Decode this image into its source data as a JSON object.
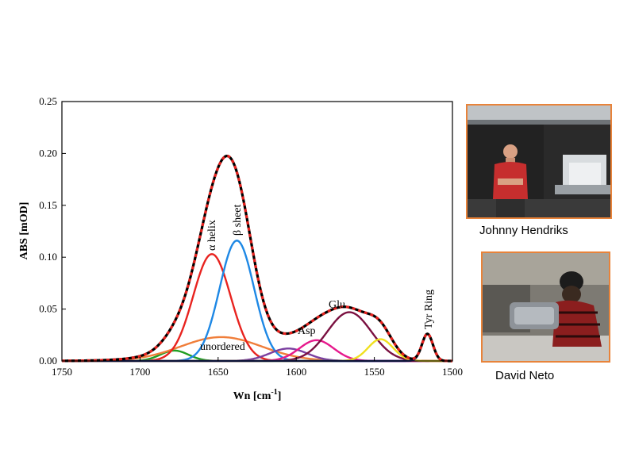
{
  "chart_data": {
    "type": "line",
    "xlabel": "Wn [cm",
    "xlabel_sup": "-1",
    "xlabel_suffix": "]",
    "ylabel": "ABS [mOD]",
    "xlim": [
      1750,
      1500
    ],
    "ylim": [
      0,
      0.25
    ],
    "x_ticks": [
      1750,
      1700,
      1650,
      1600,
      1550,
      1500
    ],
    "x_tick_labels": [
      "1750",
      "1700",
      "1650",
      "1600",
      "1550",
      "1500"
    ],
    "y_ticks": [
      0,
      0.05,
      0.1,
      0.15,
      0.2,
      0.25
    ],
    "y_tick_labels": [
      "0.00",
      "0.05",
      "0.10",
      "0.15",
      "0.20",
      "0.25"
    ],
    "grid": false,
    "series": [
      {
        "label": "",
        "color": "#1f9e22",
        "center": 1678,
        "amplitude": 0.01,
        "width": 9
      },
      {
        "label": "unordered",
        "color": "#f07e3a",
        "center": 1648,
        "amplitude": 0.023,
        "width": 26
      },
      {
        "label": "α helix",
        "color": "#e8231f",
        "center": 1654,
        "amplitude": 0.103,
        "width": 12
      },
      {
        "label": "β sheet",
        "color": "#1e88e5",
        "center": 1638,
        "amplitude": 0.116,
        "width": 11
      },
      {
        "label": "",
        "color": "#7b3fa0",
        "center": 1605,
        "amplitude": 0.012,
        "width": 12
      },
      {
        "label": "Asp",
        "color": "#e6198c",
        "center": 1587,
        "amplitude": 0.02,
        "width": 11
      },
      {
        "label": "Glu",
        "color": "#7a1040",
        "center": 1566,
        "amplitude": 0.047,
        "width": 14
      },
      {
        "label": "",
        "color": "#f0e020",
        "center": 1546,
        "amplitude": 0.021,
        "width": 8
      },
      {
        "label": "Tyr Ring",
        "color": "#1a2f88",
        "center": 1516,
        "amplitude": 0.026,
        "width": 3.5
      }
    ],
    "sum_curve": {
      "colors": [
        "#000000",
        "#e8231f"
      ],
      "style": "dashed"
    }
  },
  "photos": [
    {
      "name": "Johnny Hendriks",
      "icon": "person-at-microscope-photo"
    },
    {
      "name": "David Neto",
      "icon": "person-at-equipment-photo"
    }
  ]
}
